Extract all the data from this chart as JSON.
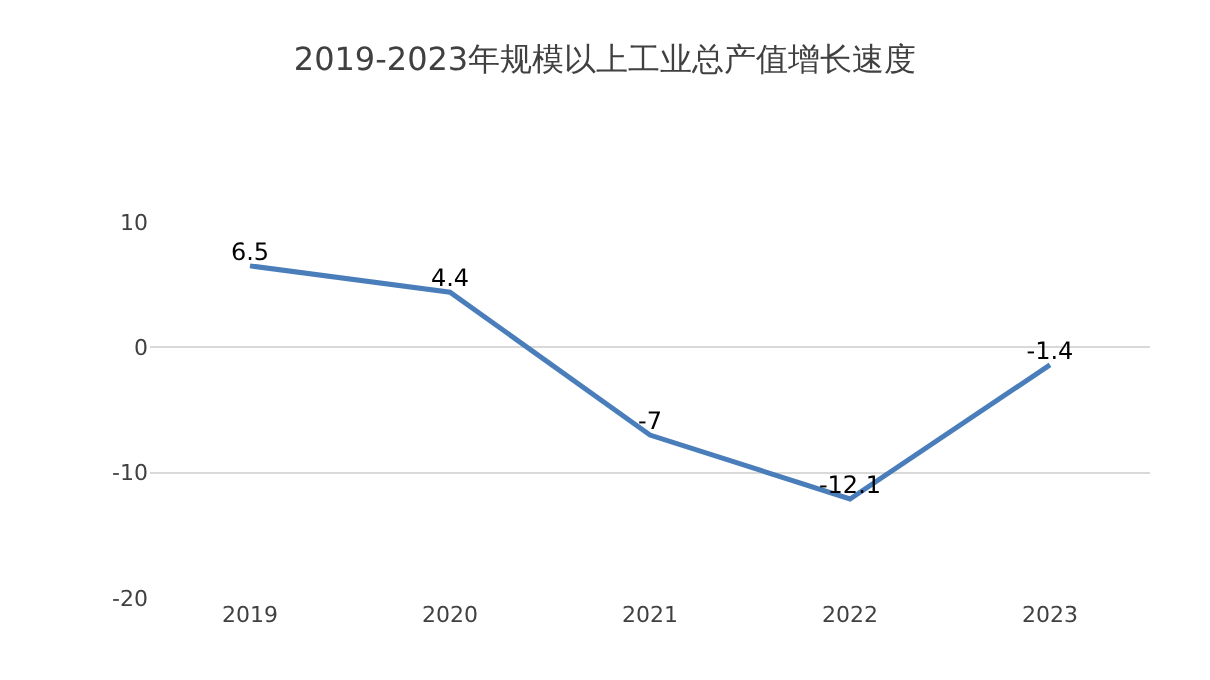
{
  "chart_data": {
    "type": "line",
    "title": "2019-2023年规模以上工业总产值增长速度",
    "categories": [
      "2019",
      "2020",
      "2021",
      "2022",
      "2023"
    ],
    "series": [
      {
        "color": "#4a7ebb",
        "values": [
          6.5,
          4.4,
          -7,
          -12.1,
          -1.4
        ]
      }
    ],
    "ylim": [
      -20,
      10
    ],
    "yticks": [
      -20,
      -10,
      0,
      10
    ],
    "grid": "y",
    "data_labels": true
  }
}
